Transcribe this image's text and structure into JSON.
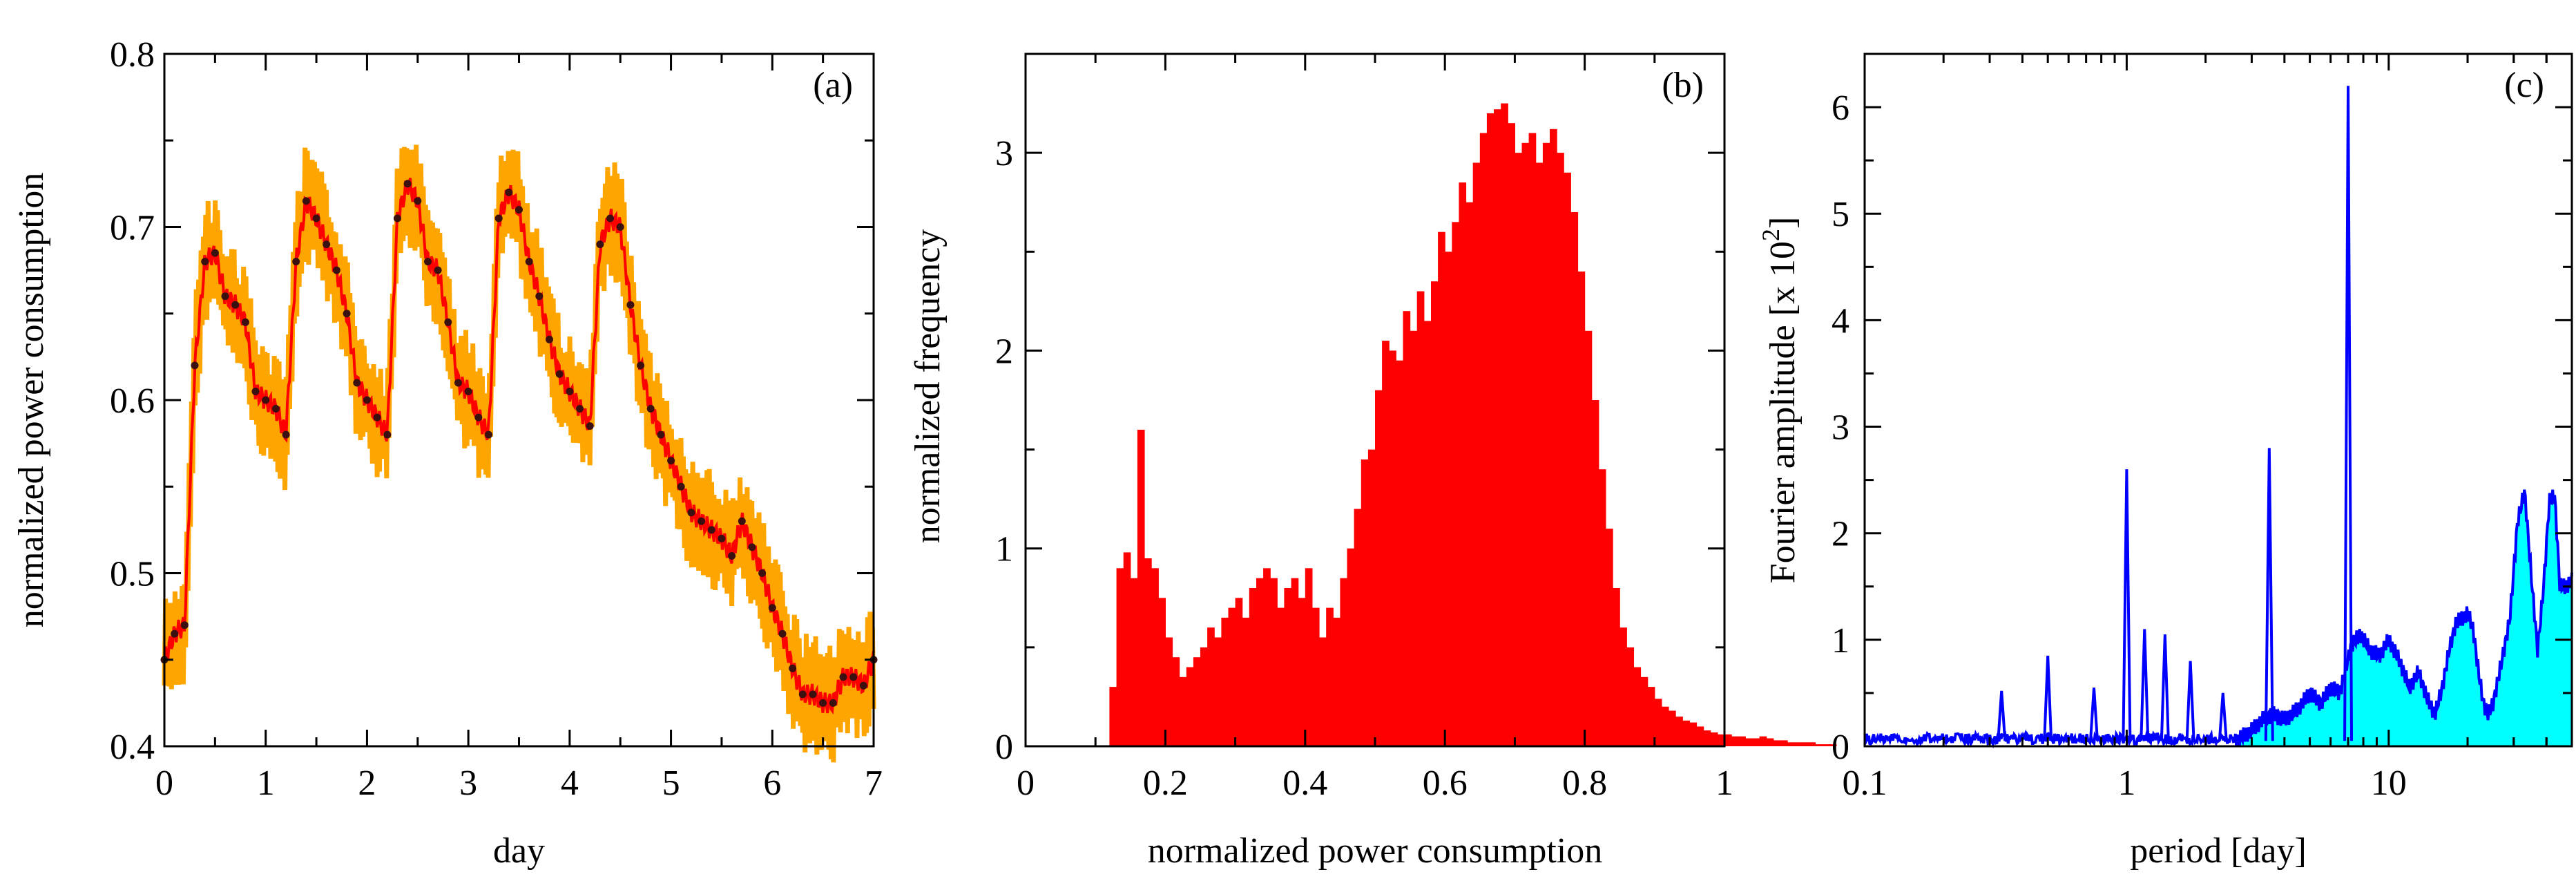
{
  "chart_data": [
    {
      "panel": "(a)",
      "type": "line",
      "xlabel": "day",
      "ylabel": "normalized power consumption",
      "xlim": [
        0,
        7
      ],
      "ylim": [
        0.4,
        0.8
      ],
      "xticks": [
        0,
        1,
        2,
        3,
        4,
        5,
        6,
        7
      ],
      "yticks": [
        0.4,
        0.5,
        0.6,
        0.7,
        0.8
      ],
      "series": [
        {
          "style": "band",
          "color": "#FFA500",
          "half_width": 0.025
        },
        {
          "style": "line-with-markers",
          "color": "#FF0000",
          "marker_color": "#3a1010",
          "x": [
            0,
            0.1,
            0.2,
            0.3,
            0.4,
            0.5,
            0.6,
            0.7,
            0.8,
            0.9,
            1.0,
            1.1,
            1.2,
            1.3,
            1.4,
            1.5,
            1.6,
            1.7,
            1.8,
            1.9,
            2.0,
            2.1,
            2.2,
            2.3,
            2.4,
            2.5,
            2.6,
            2.7,
            2.8,
            2.9,
            3.0,
            3.1,
            3.2,
            3.3,
            3.4,
            3.5,
            3.6,
            3.7,
            3.8,
            3.9,
            4.0,
            4.1,
            4.2,
            4.3,
            4.4,
            4.5,
            4.6,
            4.7,
            4.8,
            4.9,
            5.0,
            5.1,
            5.2,
            5.3,
            5.4,
            5.5,
            5.6,
            5.7,
            5.8,
            5.9,
            6.0,
            6.1,
            6.2,
            6.3,
            6.4,
            6.5,
            6.6,
            6.7,
            6.8,
            6.9,
            7.0
          ],
          "y": [
            0.45,
            0.465,
            0.47,
            0.62,
            0.68,
            0.685,
            0.66,
            0.655,
            0.645,
            0.605,
            0.6,
            0.595,
            0.58,
            0.68,
            0.715,
            0.705,
            0.69,
            0.675,
            0.65,
            0.61,
            0.6,
            0.59,
            0.58,
            0.705,
            0.725,
            0.715,
            0.68,
            0.675,
            0.645,
            0.61,
            0.605,
            0.59,
            0.58,
            0.705,
            0.72,
            0.71,
            0.68,
            0.66,
            0.635,
            0.615,
            0.605,
            0.595,
            0.585,
            0.69,
            0.705,
            0.7,
            0.655,
            0.62,
            0.595,
            0.58,
            0.565,
            0.55,
            0.535,
            0.53,
            0.525,
            0.52,
            0.51,
            0.53,
            0.515,
            0.5,
            0.48,
            0.465,
            0.445,
            0.43,
            0.43,
            0.425,
            0.425,
            0.44,
            0.44,
            0.435,
            0.45
          ]
        }
      ],
      "annotations": [
        "(a)"
      ]
    },
    {
      "panel": "(b)",
      "type": "bar",
      "style": "histogram",
      "color": "#FF0000",
      "xlabel": "normalized power consumption",
      "ylabel": "normalized frequency",
      "xlim": [
        0,
        1
      ],
      "ylim": [
        0,
        3.5
      ],
      "xticks": [
        0,
        0.2,
        0.4,
        0.6,
        0.8,
        1
      ],
      "yticks": [
        0,
        1,
        2,
        3
      ],
      "bin_width": 0.01,
      "bin_start": 0.12,
      "values": [
        0.3,
        0.9,
        0.98,
        0.85,
        1.6,
        0.95,
        0.9,
        0.75,
        0.55,
        0.45,
        0.35,
        0.4,
        0.45,
        0.5,
        0.6,
        0.55,
        0.65,
        0.7,
        0.75,
        0.65,
        0.8,
        0.85,
        0.9,
        0.85,
        0.7,
        0.8,
        0.85,
        0.75,
        0.9,
        0.7,
        0.55,
        0.7,
        0.65,
        0.85,
        1.0,
        1.2,
        1.45,
        1.5,
        1.8,
        2.05,
        2.0,
        1.95,
        2.2,
        2.1,
        2.3,
        2.15,
        2.35,
        2.6,
        2.5,
        2.65,
        2.85,
        2.75,
        2.95,
        3.1,
        3.2,
        3.22,
        3.25,
        3.15,
        3.0,
        3.05,
        3.1,
        2.95,
        3.05,
        3.12,
        3.0,
        2.9,
        2.7,
        2.4,
        2.1,
        1.75,
        1.4,
        1.1,
        0.8,
        0.6,
        0.5,
        0.4,
        0.35,
        0.3,
        0.24,
        0.2,
        0.18,
        0.15,
        0.13,
        0.12,
        0.1,
        0.08,
        0.07,
        0.06,
        0.06,
        0.05,
        0.05,
        0.04,
        0.04,
        0.05,
        0.04,
        0.03,
        0.03,
        0.02,
        0.02,
        0.02,
        0.02,
        0.01,
        0.01,
        0.01
      ],
      "annotations": [
        "(b)"
      ]
    },
    {
      "panel": "(c)",
      "type": "line",
      "log_x": true,
      "color": "#0000FF",
      "fill_color": "#00FFFF",
      "xlabel": "period  [day]",
      "ylabel": "Fourier amplitude  [x 10",
      "ylabel_sup": "2",
      "ylabel_end": "]",
      "xlim": [
        0.1,
        50
      ],
      "ylim": [
        0,
        6.5
      ],
      "xticks": [
        0.1,
        1,
        10
      ],
      "xtick_labels": [
        "0.1",
        "1",
        "10"
      ],
      "yticks": [
        0,
        1,
        2,
        3,
        4,
        5,
        6
      ],
      "spikes": [
        {
          "x": 0.333,
          "y": 0.52
        },
        {
          "x": 0.5,
          "y": 0.85
        },
        {
          "x": 0.75,
          "y": 0.55
        },
        {
          "x": 1.0,
          "y": 2.6
        },
        {
          "x": 1.17,
          "y": 1.1
        },
        {
          "x": 1.4,
          "y": 1.05
        },
        {
          "x": 1.75,
          "y": 0.8
        },
        {
          "x": 2.33,
          "y": 0.5
        },
        {
          "x": 3.5,
          "y": 2.8
        },
        {
          "x": 7.0,
          "y": 6.2
        }
      ],
      "envelope": {
        "x": [
          2.6,
          3.0,
          3.3,
          3.6,
          4.0,
          4.5,
          5.0,
          5.5,
          6.0,
          6.5,
          7.2,
          7.8,
          8.5,
          9.2,
          10,
          11,
          12,
          13,
          14,
          15,
          16,
          17,
          18,
          19,
          20,
          21,
          22,
          23,
          24,
          25,
          27,
          29,
          31,
          33,
          35,
          37,
          39,
          41,
          43,
          45,
          47,
          50
        ],
        "y": [
          0.05,
          0.15,
          0.25,
          0.3,
          0.25,
          0.35,
          0.5,
          0.4,
          0.55,
          0.5,
          0.95,
          1.05,
          0.9,
          0.85,
          1.0,
          0.8,
          0.55,
          0.7,
          0.45,
          0.3,
          0.55,
          0.9,
          1.15,
          1.2,
          1.25,
          1.1,
          0.7,
          0.4,
          0.3,
          0.4,
          0.8,
          1.2,
          2.1,
          2.4,
          1.6,
          0.9,
          1.5,
          2.3,
          2.35,
          1.5,
          1.5,
          1.55
        ]
      },
      "annotations": [
        "(c)"
      ]
    }
  ]
}
